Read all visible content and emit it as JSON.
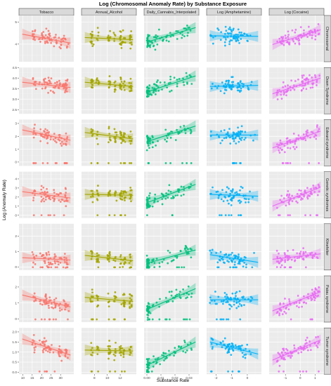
{
  "chart_data": {
    "type": "scatter",
    "title": "Log (Chromosomal Anomaly Rate) by Substance Exposure",
    "xlabel": "Substance Rate",
    "ylabel": "Log (Anomaly Rate)",
    "grid": true,
    "legend": "none",
    "columns": [
      {
        "name": "Tobacco",
        "color": "#F8766D",
        "xlim": [
          8,
          37
        ],
        "ticks": [
          10,
          15,
          20,
          25,
          30
        ]
      },
      {
        "name": "Annual_Alcohol",
        "color": "#A3A500",
        "xlim": [
          6,
          14.5
        ],
        "ticks": [
          8,
          10,
          12
        ]
      },
      {
        "name": "Daily_Cannabis_Interpolated",
        "color": "#00BF7D",
        "xlim": [
          -0.002,
          0.037
        ],
        "ticks": [
          0.0,
          0.01,
          0.02,
          0.03
        ],
        "tick_labels": [
          "0.00",
          "0.01",
          "0.02",
          "0.03"
        ]
      },
      {
        "name": "Log (Amphetamine)",
        "color": "#00B0F6",
        "xlim": [
          -2.6,
          0.9
        ],
        "ticks": [
          -2,
          -1,
          0
        ]
      },
      {
        "name": "Log (Cocaine)",
        "color": "#E76BF3",
        "xlim": [
          -2.1,
          1.6
        ],
        "ticks": [
          -1,
          0,
          1
        ]
      }
    ],
    "rows": [
      {
        "name": "Chromosomal",
        "ylim": [
          3.2,
          5.3
        ],
        "ticks": [
          3,
          4,
          5
        ]
      },
      {
        "name": "Down Syndrome",
        "ylim": [
          2.3,
          4.5
        ],
        "ticks": [
          2.5,
          3.0,
          3.5,
          4.0,
          4.5
        ],
        "tick_labels": [
          "2.5",
          "3.0",
          "3.5",
          "4.0",
          "4.5"
        ]
      },
      {
        "name": "Edward syndrome",
        "ylim": [
          -0.3,
          3.3
        ],
        "ticks": [
          0,
          1,
          2,
          3
        ]
      },
      {
        "name": "Genetic syndromes",
        "ylim": [
          -0.3,
          4.8
        ],
        "ticks": [
          0,
          1,
          2,
          3,
          4
        ]
      },
      {
        "name": "Klinefelter",
        "ylim": [
          -0.2,
          2.8
        ],
        "ticks": [
          0,
          1,
          2
        ]
      },
      {
        "name": "Patau syndrome",
        "ylim": [
          -0.2,
          2.7
        ],
        "ticks": [
          0,
          1,
          2
        ]
      },
      {
        "name": "Turner syndrome",
        "ylim": [
          -0.1,
          2.2
        ],
        "ticks": [
          0.0,
          0.5,
          1.0,
          1.5,
          2.0
        ],
        "tick_labels": [
          "0.0",
          "0.5",
          "1.0",
          "1.5",
          "2.0"
        ]
      }
    ],
    "trend_lines": [
      [
        [
          4.45,
          4.05
        ],
        [
          4.3,
          4.2
        ],
        [
          4.1,
          4.75
        ],
        [
          4.38,
          4.35
        ],
        [
          3.98,
          4.65
        ]
      ],
      [
        [
          3.8,
          3.55
        ],
        [
          3.8,
          3.6
        ],
        [
          3.35,
          4.1
        ],
        [
          3.6,
          3.65
        ],
        [
          3.25,
          4.0
        ]
      ],
      [
        [
          2.5,
          1.7
        ],
        [
          2.3,
          1.8
        ],
        [
          1.6,
          2.8
        ],
        [
          2.1,
          2.1
        ],
        [
          1.1,
          2.4
        ]
      ],
      [
        [
          2.6,
          1.9
        ],
        [
          2.3,
          2.2
        ],
        [
          1.4,
          3.4
        ],
        [
          2.3,
          2.1
        ],
        [
          1.0,
          3.1
        ]
      ],
      [
        [
          0.6,
          0.45
        ],
        [
          0.75,
          0.4
        ],
        [
          0.25,
          1.1
        ],
        [
          0.8,
          0.3
        ],
        [
          0.5,
          0.85
        ]
      ],
      [
        [
          1.5,
          0.75
        ],
        [
          1.35,
          1.1
        ],
        [
          0.6,
          1.9
        ],
        [
          1.2,
          1.2
        ],
        [
          0.5,
          1.7
        ]
      ],
      [
        [
          1.65,
          0.85
        ],
        [
          1.1,
          1.05
        ],
        [
          0.35,
          1.5
        ],
        [
          1.5,
          0.9
        ],
        [
          0.6,
          1.6
        ]
      ]
    ]
  }
}
